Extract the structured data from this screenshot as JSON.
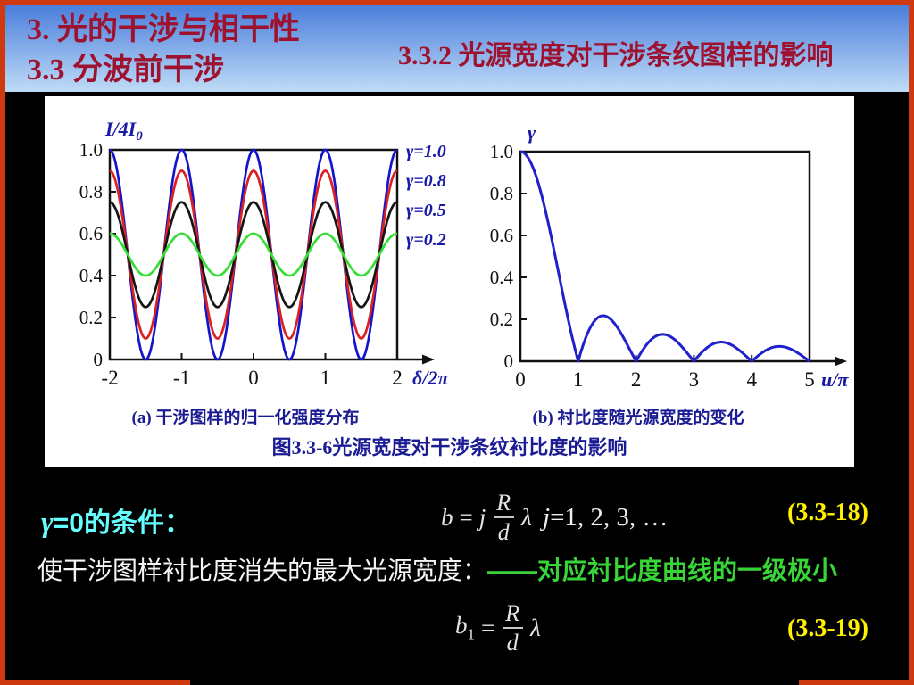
{
  "header": {
    "title_line1": "3. 光的干涉与相干性",
    "title_line2": "3.3 分波前干涉",
    "subtitle": "3.3.2 光源宽度对干涉条纹图样的影响"
  },
  "colors": {
    "border": "#CE3910",
    "header_text": "#9E1230",
    "header_bg_top": "#4B7EDB",
    "header_bg_bottom": "#BFDCF7",
    "caption_blue": "#1B1B94",
    "axis_label_blue": "#1A1AA8",
    "cyan": "#66FFFF",
    "green": "#38D438",
    "yellow": "#FFF100"
  },
  "figure": {
    "caption_a": "(a) 干涉图样的归一化强度分布",
    "caption_b": "(b) 衬比度随光源宽度的变化",
    "caption_main": "图3.3-6光源宽度对干涉条纹衬比度的影响"
  },
  "chart_data": [
    {
      "id": "intensity",
      "type": "line",
      "title": "(a) 干涉图样的归一化强度分布",
      "xlabel": "δ/2π",
      "ylabel": "I/4I₀",
      "xlim": [
        -2,
        2
      ],
      "ylim": [
        0,
        1
      ],
      "xticks": [
        "-2",
        "-1",
        "0",
        "1",
        "2"
      ],
      "yticks": [
        "0",
        "0.2",
        "0.4",
        "0.6",
        "0.8",
        "1.0"
      ],
      "grid": false,
      "legend_position": "right-outside",
      "formula": "I/4I0 = 0.5*(1 + gamma*cos(2*pi*x)), x = delta/2pi",
      "sample_x_step": 0.25,
      "sample_x": [
        -2,
        -1.75,
        -1.5,
        -1.25,
        -1,
        -0.75,
        -0.5,
        -0.25,
        0,
        0.25,
        0.5,
        0.75,
        1,
        1.25,
        1.5,
        1.75,
        2
      ],
      "series": [
        {
          "name": "γ=1.0",
          "gamma": 1.0,
          "color": "#1414CC",
          "y_samples": [
            1,
            0.5,
            0,
            0.5,
            1,
            0.5,
            0,
            0.5,
            1,
            0.5,
            0,
            0.5,
            1,
            0.5,
            0,
            0.5,
            1
          ]
        },
        {
          "name": "γ=0.8",
          "gamma": 0.8,
          "color": "#DD2020",
          "y_samples": [
            0.9,
            0.5,
            0.1,
            0.5,
            0.9,
            0.5,
            0.1,
            0.5,
            0.9,
            0.5,
            0.1,
            0.5,
            0.9,
            0.5,
            0.1,
            0.5,
            0.9
          ]
        },
        {
          "name": "γ=0.5",
          "gamma": 0.5,
          "color": "#151515",
          "y_samples": [
            0.75,
            0.5,
            0.25,
            0.5,
            0.75,
            0.5,
            0.25,
            0.5,
            0.75,
            0.5,
            0.25,
            0.5,
            0.75,
            0.5,
            0.25,
            0.5,
            0.75
          ]
        },
        {
          "name": "γ=0.2",
          "gamma": 0.2,
          "color": "#35DD35",
          "y_samples": [
            0.6,
            0.5,
            0.4,
            0.5,
            0.6,
            0.5,
            0.4,
            0.5,
            0.6,
            0.5,
            0.4,
            0.5,
            0.6,
            0.5,
            0.4,
            0.5,
            0.6
          ]
        }
      ]
    },
    {
      "id": "visibility",
      "type": "line",
      "title": "(b) 衬比度随光源宽度的变化",
      "xlabel": "u/π",
      "ylabel": "γ",
      "xlim": [
        0,
        5
      ],
      "ylim": [
        0,
        1
      ],
      "xticks": [
        "0",
        "1",
        "2",
        "3",
        "4",
        "5"
      ],
      "yticks": [
        "0",
        "0.2",
        "0.4",
        "0.6",
        "0.8",
        "1.0"
      ],
      "grid": false,
      "formula": "γ = |sin(u)/u|, x = u/π",
      "sample_x_step": 0.25,
      "series": [
        {
          "name": "γ(u/π)",
          "fn": "abs_sinc",
          "color": "#2020CC",
          "x_samples": [
            0,
            0.25,
            0.5,
            0.75,
            1,
            1.25,
            1.5,
            1.75,
            2,
            2.25,
            2.5,
            2.75,
            3,
            3.25,
            3.5,
            3.75,
            4,
            4.25,
            4.5,
            4.75,
            5
          ],
          "y_samples": [
            1,
            0.9,
            0.637,
            0.3,
            0,
            0.18,
            0.212,
            0.129,
            0,
            0.1,
            0.127,
            0.082,
            0,
            0.069,
            0.091,
            0.06,
            0,
            0.053,
            0.071,
            0.047,
            0
          ]
        }
      ]
    }
  ],
  "equations": {
    "condition_gamma": "γ",
    "condition_rest": "=0的条件：",
    "eq1": {
      "lhs": "b",
      "rel": "=",
      "coeff": "j",
      "num": "R",
      "den": "d",
      "mult": "λ"
    },
    "eq1_range_var": "j",
    "eq1_range_rest": "=1, 2, 3, …",
    "eq1_number": "(3.3-18)",
    "line2_white": "使干涉图样衬比度消失的最大光源宽度：",
    "line2_green": "——对应衬比度曲线的一级极小",
    "eq2": {
      "lhs": "b",
      "sub": "1",
      "rel": "=",
      "num": "R",
      "den": "d",
      "mult": "λ"
    },
    "eq2_number": "(3.3-19)"
  }
}
